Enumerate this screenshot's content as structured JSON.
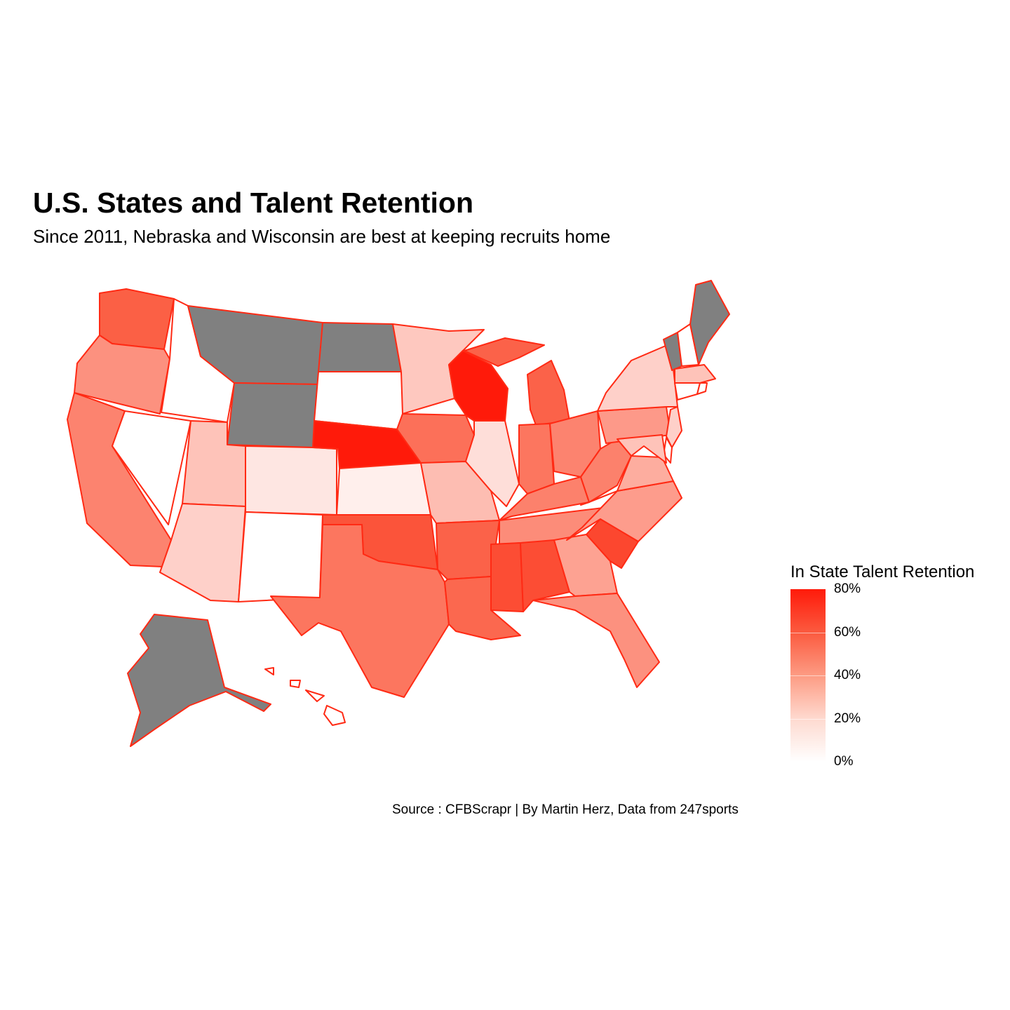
{
  "title": "U.S. States and Talent Retention",
  "subtitle": "Since 2011, Nebraska and Wisconsin are best at keeping recruits home",
  "caption": "Source : CFBScrapr | By Martin Herz, Data from 247sports",
  "legend": {
    "title": "In State Talent Retention",
    "ticks": [
      "80%",
      "60%",
      "40%",
      "20%",
      "0%"
    ],
    "low_color": "#ffffff",
    "high_color": "#ff1a0a",
    "na_color": "#808080"
  },
  "colors": {
    "border": "#ff2a14",
    "no_data": "#808080"
  },
  "map_data": {
    "type": "choropleth",
    "metric": "In State Talent Retention",
    "scale": [
      0,
      0.8
    ],
    "no_data_states": [
      "MT",
      "WY",
      "ND",
      "ME",
      "VT",
      "AK"
    ],
    "states": {
      "WA": 0.58,
      "OR": 0.4,
      "CA": 0.45,
      "ID": 0.0,
      "NV": 0.0,
      "UT": 0.22,
      "AZ": 0.17,
      "CO": 0.09,
      "NM": 0.0,
      "SD": 0.0,
      "NE": 0.8,
      "KS": 0.06,
      "OK": 0.62,
      "TX": 0.5,
      "MN": 0.2,
      "IA": 0.52,
      "MO": 0.24,
      "AR": 0.57,
      "LA": 0.55,
      "WI": 0.8,
      "IL": 0.12,
      "MI": 0.57,
      "IN": 0.5,
      "OH": 0.45,
      "KY": 0.46,
      "TN": 0.42,
      "MS": 0.64,
      "AL": 0.64,
      "GA": 0.34,
      "FL": 0.4,
      "SC": 0.66,
      "NC": 0.36,
      "VA": 0.3,
      "WV": 0.46,
      "PA": 0.37,
      "NY": 0.17,
      "NJ": 0.17,
      "DE": 0.0,
      "MD": 0.22,
      "NH": 0.0,
      "MA": 0.22,
      "CT": 0.0,
      "RI": 0.0,
      "HI": 0.0
    }
  }
}
